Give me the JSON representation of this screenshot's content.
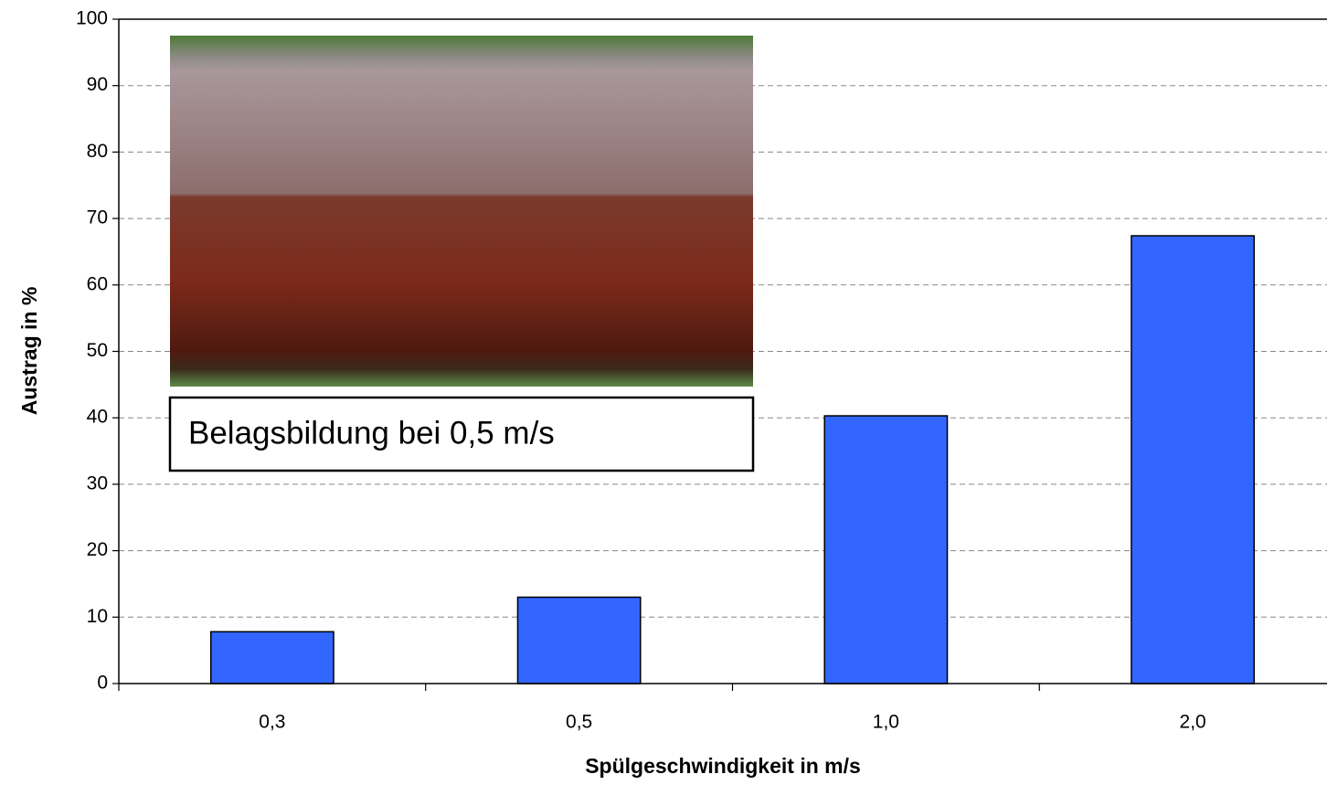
{
  "chart_data": {
    "type": "bar",
    "x_label": "Spülgeschwindigkeit in m/s",
    "y_label": "Austrag in %",
    "annotation": "Belagsbildung bei 0,5 m/s",
    "categories": [
      "0,3",
      "0,5",
      "1,0",
      "2,0"
    ],
    "values": [
      7.8,
      13,
      40.3,
      67.4
    ],
    "color": "#3366ff",
    "ylim": [
      0,
      100
    ],
    "yticks": [
      0,
      10,
      20,
      30,
      40,
      50,
      60,
      70,
      80,
      90,
      100
    ],
    "grid": true
  }
}
